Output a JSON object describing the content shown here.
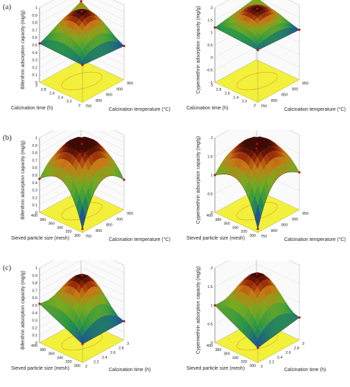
{
  "panels": [
    {
      "label": "(a)"
    },
    {
      "label": "(b)"
    },
    {
      "label": "(c)"
    }
  ],
  "chart_data": [
    {
      "type": "surface3d",
      "zlabel": "Bifenthrin adsorption capacity (mg/g)",
      "xlabel": "Calcination temperature (°C)",
      "ylabel": "Calcination time (h)",
      "x_ticks": [
        "750",
        "800",
        "850",
        "900",
        "950"
      ],
      "y_ticks": [
        "2",
        "2.2",
        "2.4",
        "2.6",
        "2.8",
        "3"
      ],
      "z_ticks": [
        "0",
        "0.1",
        "0.2",
        "0.3",
        "0.4",
        "0.5",
        "0.6",
        "0.7",
        "0.8",
        "0.9",
        "1"
      ],
      "xlim": [
        750,
        950
      ],
      "ylim": [
        2,
        3
      ],
      "zlim": [
        0,
        1
      ],
      "shape": "ridge",
      "corners": {
        "x0y0": 0.5,
        "x1y0": 0.45,
        "x0y1": 0.52,
        "x1y1": 0.78
      },
      "peak": 0.93
    },
    {
      "type": "surface3d",
      "zlabel": "Cypermethrin adsorption capacity (mg/g)",
      "xlabel": "Calcination temperature (°C)",
      "ylabel": "Calcination time (h)",
      "x_ticks": [
        "750",
        "800",
        "850",
        "900",
        "950"
      ],
      "y_ticks": [
        "2",
        "2.2",
        "2.4",
        "2.6",
        "2.8",
        "3"
      ],
      "z_ticks": [
        "-1",
        "-0.5",
        "0",
        "0.5",
        "1",
        "1.5",
        "2"
      ],
      "xlim": [
        750,
        950
      ],
      "ylim": [
        2,
        3
      ],
      "zlim": [
        -1,
        2
      ],
      "shape": "ridge",
      "corners": {
        "x0y0": 1.1,
        "x1y0": 1.0,
        "x0y1": 1.2,
        "x1y1": 1.5
      },
      "peak": 1.9
    },
    {
      "type": "surface3d",
      "zlabel": "Bifenthrin adsorption capacity (mg/g)",
      "xlabel": "Calcination temperature (°C)",
      "ylabel": "Sieved particle size (mesh)",
      "x_ticks": [
        "750",
        "800",
        "850",
        "900",
        "950"
      ],
      "y_ticks": [
        "300",
        "320",
        "340",
        "360",
        "380",
        "400"
      ],
      "z_ticks": [
        "0",
        "0.1",
        "0.2",
        "0.3",
        "0.4",
        "0.5",
        "0.6",
        "0.7",
        "0.8",
        "0.9",
        "1"
      ],
      "xlim": [
        750,
        950
      ],
      "ylim": [
        300,
        400
      ],
      "zlim": [
        0,
        1
      ],
      "shape": "saddle",
      "corners": {
        "x0y0": 0.05,
        "x1y0": 0.4,
        "x0y1": 0.45,
        "x1y1": 0.48
      },
      "peak": 0.9
    },
    {
      "type": "surface3d",
      "zlabel": "Cypermethrin adsorption capacity (mg/g)",
      "xlabel": "Calcination temperature (°C)",
      "ylabel": "Sieved particle size (mesh)",
      "x_ticks": [
        "750",
        "800",
        "850",
        "900",
        "950"
      ],
      "y_ticks": [
        "300",
        "320",
        "340",
        "360",
        "380",
        "400"
      ],
      "z_ticks": [
        "0",
        "0.5",
        "1",
        "1.5",
        "2"
      ],
      "xlim": [
        750,
        950
      ],
      "ylim": [
        300,
        400
      ],
      "zlim": [
        0,
        2
      ],
      "shape": "saddle",
      "corners": {
        "x0y0": 0.1,
        "x1y0": 1.0,
        "x0y1": 1.0,
        "x1y1": 1.1
      },
      "peak": 1.8
    },
    {
      "type": "surface3d",
      "zlabel": "Bifenthrin adsorption capacity (mg/g)",
      "xlabel": "Calcination time (h)",
      "ylabel": "Sieved particle size (mesh)",
      "x_ticks": [
        "2",
        "2.2",
        "2.4",
        "2.6",
        "2.8",
        "3"
      ],
      "y_ticks": [
        "300",
        "320",
        "340",
        "360",
        "380",
        "400"
      ],
      "z_ticks": [
        "0",
        "0.1",
        "0.2",
        "0.3",
        "0.4",
        "0.5",
        "0.6",
        "0.7",
        "0.8",
        "0.9",
        "1"
      ],
      "xlim": [
        2,
        3
      ],
      "ylim": [
        300,
        400
      ],
      "zlim": [
        0,
        1
      ],
      "shape": "ridge",
      "corners": {
        "x0y0": 0.25,
        "x1y0": 0.25,
        "x0y1": 0.52,
        "x1y1": 0.45
      },
      "peak": 0.88
    },
    {
      "type": "surface3d",
      "zlabel": "Cypermethrin adsorption capacity (mg/g)",
      "xlabel": "Calcination time (h)",
      "ylabel": "Sieved particle size (mesh)",
      "x_ticks": [
        "2",
        "2.2",
        "2.4",
        "2.6",
        "2.8",
        "3"
      ],
      "y_ticks": [
        "300",
        "320",
        "340",
        "360",
        "380",
        "400"
      ],
      "z_ticks": [
        "0",
        "0.5",
        "1",
        "1.5",
        "2"
      ],
      "xlim": [
        2,
        3
      ],
      "ylim": [
        300,
        400
      ],
      "zlim": [
        0,
        2
      ],
      "shape": "ridge",
      "corners": {
        "x0y0": 0.4,
        "x1y0": 0.6,
        "x0y1": 1.0,
        "x1y1": 1.0
      },
      "peak": 1.8
    }
  ]
}
